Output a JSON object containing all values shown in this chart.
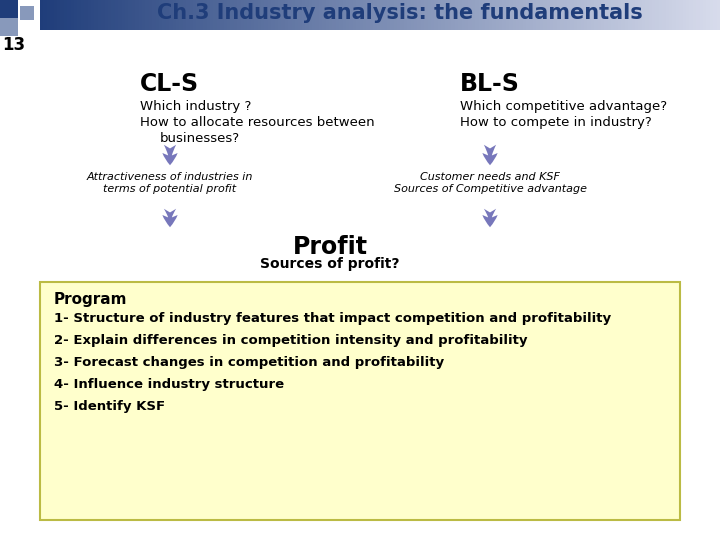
{
  "title": "Ch.3 Industry analysis: the fundamentals",
  "slide_number": "13",
  "title_color": "#1F3D7A",
  "title_fontsize": 15,
  "bg_color": "#FFFFFF",
  "cls_label": "CL-S",
  "cls_line1": "Which industry ?",
  "cls_line2": "How to allocate resources between",
  "cls_line3": "businesses?",
  "cls_italic1": "Attractiveness of industries in",
  "cls_italic2": "terms of potential profit",
  "bls_label": "BL-S",
  "bls_line1": "Which competitive advantage?",
  "bls_line2": "How to compete in industry?",
  "bls_italic1": "Customer needs and KSF",
  "bls_italic2": "Sources of Competitive advantage",
  "profit_label": "Profit",
  "profit_sub": "Sources of profit?",
  "arrow_color": "#7777BB",
  "program_bg": "#FFFFCC",
  "program_border": "#BBBB44",
  "program_title": "Program",
  "program_items": [
    "1- Structure of industry features that impact competition and profitability",
    "2- Explain differences in competition intensity and profitability",
    "3- Forecast changes in competition and profitability",
    "4- Influence industry structure",
    "5- Identify KSF"
  ],
  "main_fontsize": 9.5,
  "label_fontsize": 8.0,
  "profit_fontsize": 17,
  "profit_sub_fontsize": 10,
  "program_title_fontsize": 11,
  "program_item_fontsize": 9.5,
  "cls_label_fontsize": 17,
  "bls_label_fontsize": 17,
  "slide_num_fontsize": 12
}
